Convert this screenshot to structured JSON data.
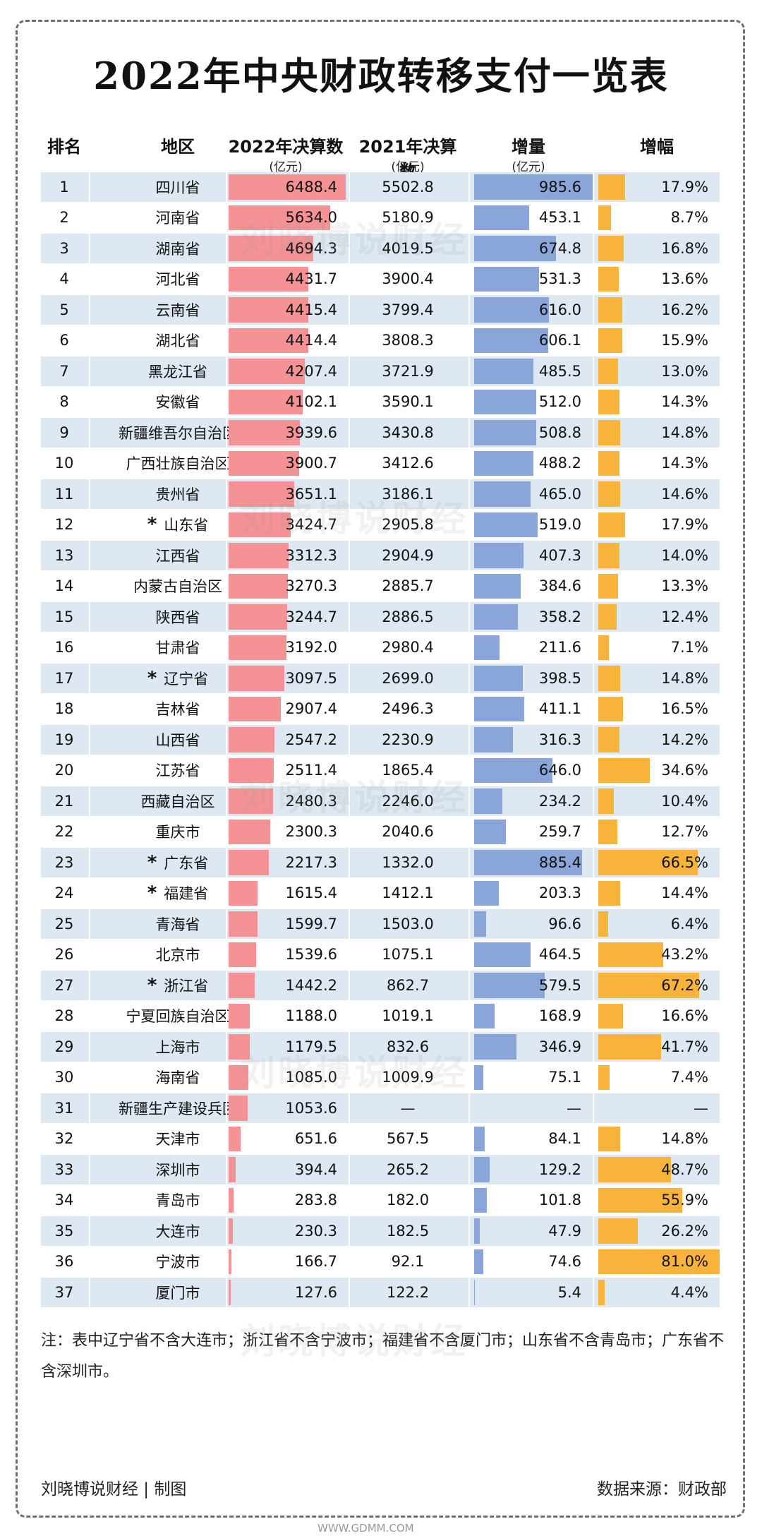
{
  "title": "2022年中央财政转移支付一览表",
  "headers": {
    "rank": "排名",
    "region": "地区",
    "v2022": "2022年决算数",
    "v2022_unit": "(亿元)",
    "v2021": "2021年决算数",
    "v2021_unit": "(亿元)",
    "increase": "增量",
    "increase_unit": "(亿元)",
    "growth": "增幅"
  },
  "watermark": "刘晓博说财经",
  "note": "注：表中辽宁省不含大连市；浙江省不含宁波市；福建省不含厦门市；山东省不含青岛市；广东省不含深圳市。",
  "footer": {
    "author": "刘晓博说财经 | 制图",
    "source": "数据来源：财政部"
  },
  "site_mark": "WWW.GDMM.COM",
  "colors": {
    "bar_2022": "#f49295",
    "bar_increase": "#8aa5d8",
    "bar_growth": "#f8b33a",
    "row_stripe": "#dde8f3"
  },
  "chart_data": {
    "type": "table",
    "columns": [
      "排名",
      "地区",
      "2022年决算数",
      "2021年决算数",
      "增量",
      "增幅"
    ],
    "rows": [
      {
        "rank": "1",
        "region": "四川省",
        "star": "",
        "v2022": "6488.4",
        "v2021": "5502.8",
        "inc": "985.6",
        "pct": "17.9%"
      },
      {
        "rank": "2",
        "region": "河南省",
        "star": "",
        "v2022": "5634.0",
        "v2021": "5180.9",
        "inc": "453.1",
        "pct": "8.7%"
      },
      {
        "rank": "3",
        "region": "湖南省",
        "star": "",
        "v2022": "4694.3",
        "v2021": "4019.5",
        "inc": "674.8",
        "pct": "16.8%"
      },
      {
        "rank": "4",
        "region": "河北省",
        "star": "",
        "v2022": "4431.7",
        "v2021": "3900.4",
        "inc": "531.3",
        "pct": "13.6%"
      },
      {
        "rank": "5",
        "region": "云南省",
        "star": "",
        "v2022": "4415.4",
        "v2021": "3799.4",
        "inc": "616.0",
        "pct": "16.2%"
      },
      {
        "rank": "6",
        "region": "湖北省",
        "star": "",
        "v2022": "4414.4",
        "v2021": "3808.3",
        "inc": "606.1",
        "pct": "15.9%"
      },
      {
        "rank": "7",
        "region": "黑龙江省",
        "star": "",
        "v2022": "4207.4",
        "v2021": "3721.9",
        "inc": "485.5",
        "pct": "13.0%"
      },
      {
        "rank": "8",
        "region": "安徽省",
        "star": "",
        "v2022": "4102.1",
        "v2021": "3590.1",
        "inc": "512.0",
        "pct": "14.3%"
      },
      {
        "rank": "9",
        "region": "新疆维吾尔自治区",
        "star": "",
        "v2022": "3939.6",
        "v2021": "3430.8",
        "inc": "508.8",
        "pct": "14.8%"
      },
      {
        "rank": "10",
        "region": "广西壮族自治区",
        "star": "",
        "v2022": "3900.7",
        "v2021": "3412.6",
        "inc": "488.2",
        "pct": "14.3%"
      },
      {
        "rank": "11",
        "region": "贵州省",
        "star": "",
        "v2022": "3651.1",
        "v2021": "3186.1",
        "inc": "465.0",
        "pct": "14.6%"
      },
      {
        "rank": "12",
        "region": "山东省",
        "star": "*",
        "v2022": "3424.7",
        "v2021": "2905.8",
        "inc": "519.0",
        "pct": "17.9%"
      },
      {
        "rank": "13",
        "region": "江西省",
        "star": "",
        "v2022": "3312.3",
        "v2021": "2904.9",
        "inc": "407.3",
        "pct": "14.0%"
      },
      {
        "rank": "14",
        "region": "内蒙古自治区",
        "star": "",
        "v2022": "3270.3",
        "v2021": "2885.7",
        "inc": "384.6",
        "pct": "13.3%"
      },
      {
        "rank": "15",
        "region": "陕西省",
        "star": "",
        "v2022": "3244.7",
        "v2021": "2886.5",
        "inc": "358.2",
        "pct": "12.4%"
      },
      {
        "rank": "16",
        "region": "甘肃省",
        "star": "",
        "v2022": "3192.0",
        "v2021": "2980.4",
        "inc": "211.6",
        "pct": "7.1%"
      },
      {
        "rank": "17",
        "region": "辽宁省",
        "star": "*",
        "v2022": "3097.5",
        "v2021": "2699.0",
        "inc": "398.5",
        "pct": "14.8%"
      },
      {
        "rank": "18",
        "region": "吉林省",
        "star": "",
        "v2022": "2907.4",
        "v2021": "2496.3",
        "inc": "411.1",
        "pct": "16.5%"
      },
      {
        "rank": "19",
        "region": "山西省",
        "star": "",
        "v2022": "2547.2",
        "v2021": "2230.9",
        "inc": "316.3",
        "pct": "14.2%"
      },
      {
        "rank": "20",
        "region": "江苏省",
        "star": "",
        "v2022": "2511.4",
        "v2021": "1865.4",
        "inc": "646.0",
        "pct": "34.6%"
      },
      {
        "rank": "21",
        "region": "西藏自治区",
        "star": "",
        "v2022": "2480.3",
        "v2021": "2246.0",
        "inc": "234.2",
        "pct": "10.4%"
      },
      {
        "rank": "22",
        "region": "重庆市",
        "star": "",
        "v2022": "2300.3",
        "v2021": "2040.6",
        "inc": "259.7",
        "pct": "12.7%"
      },
      {
        "rank": "23",
        "region": "广东省",
        "star": "*",
        "v2022": "2217.3",
        "v2021": "1332.0",
        "inc": "885.4",
        "pct": "66.5%"
      },
      {
        "rank": "24",
        "region": "福建省",
        "star": "*",
        "v2022": "1615.4",
        "v2021": "1412.1",
        "inc": "203.3",
        "pct": "14.4%"
      },
      {
        "rank": "25",
        "region": "青海省",
        "star": "",
        "v2022": "1599.7",
        "v2021": "1503.0",
        "inc": "96.6",
        "pct": "6.4%"
      },
      {
        "rank": "26",
        "region": "北京市",
        "star": "",
        "v2022": "1539.6",
        "v2021": "1075.1",
        "inc": "464.5",
        "pct": "43.2%"
      },
      {
        "rank": "27",
        "region": "浙江省",
        "star": "*",
        "v2022": "1442.2",
        "v2021": "862.7",
        "inc": "579.5",
        "pct": "67.2%"
      },
      {
        "rank": "28",
        "region": "宁夏回族自治区",
        "star": "",
        "v2022": "1188.0",
        "v2021": "1019.1",
        "inc": "168.9",
        "pct": "16.6%"
      },
      {
        "rank": "29",
        "region": "上海市",
        "star": "",
        "v2022": "1179.5",
        "v2021": "832.6",
        "inc": "346.9",
        "pct": "41.7%"
      },
      {
        "rank": "30",
        "region": "海南省",
        "star": "",
        "v2022": "1085.0",
        "v2021": "1009.9",
        "inc": "75.1",
        "pct": "7.4%"
      },
      {
        "rank": "31",
        "region": "新疆生产建设兵团",
        "star": "",
        "v2022": "1053.6",
        "v2021": "—",
        "inc": "—",
        "pct": "—"
      },
      {
        "rank": "32",
        "region": "天津市",
        "star": "",
        "v2022": "651.6",
        "v2021": "567.5",
        "inc": "84.1",
        "pct": "14.8%"
      },
      {
        "rank": "33",
        "region": "深圳市",
        "star": "",
        "v2022": "394.4",
        "v2021": "265.2",
        "inc": "129.2",
        "pct": "48.7%"
      },
      {
        "rank": "34",
        "region": "青岛市",
        "star": "",
        "v2022": "283.8",
        "v2021": "182.0",
        "inc": "101.8",
        "pct": "55.9%"
      },
      {
        "rank": "35",
        "region": "大连市",
        "star": "",
        "v2022": "230.3",
        "v2021": "182.5",
        "inc": "47.9",
        "pct": "26.2%"
      },
      {
        "rank": "36",
        "region": "宁波市",
        "star": "",
        "v2022": "166.7",
        "v2021": "92.1",
        "inc": "74.6",
        "pct": "81.0%"
      },
      {
        "rank": "37",
        "region": "厦门市",
        "star": "",
        "v2022": "127.6",
        "v2021": "122.2",
        "inc": "5.4",
        "pct": "4.4%"
      }
    ]
  }
}
